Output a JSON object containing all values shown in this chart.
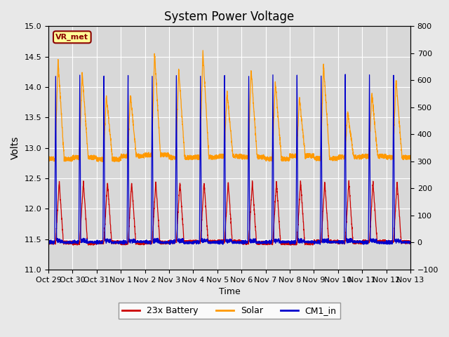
{
  "title": "System Power Voltage",
  "xlabel": "Time",
  "ylabel_left": "Volts",
  "ylabel_right": "",
  "ylim_left": [
    11.0,
    15.0
  ],
  "ylim_right": [
    -100,
    800
  ],
  "yticks_left": [
    11.0,
    11.5,
    12.0,
    12.5,
    13.0,
    13.5,
    14.0,
    14.5,
    15.0
  ],
  "yticks_right": [
    -100,
    0,
    100,
    200,
    300,
    400,
    500,
    600,
    700,
    800
  ],
  "xtick_labels": [
    "Oct 29",
    "Oct 30",
    "Oct 31",
    "Nov 1",
    "Nov 2",
    "Nov 3",
    "Nov 4",
    "Nov 5",
    "Nov 6",
    "Nov 7",
    "Nov 8",
    "Nov 9",
    "Nov 10",
    "Nov 11",
    "Nov 12",
    "Nov 13"
  ],
  "n_days": 15,
  "background_color": "#e8e8e8",
  "axes_bg_color": "#d8d8d8",
  "grid_color": "#ffffff",
  "vr_met_label": "VR_met",
  "vr_met_bg": "#ffff99",
  "vr_met_border": "#8B0000",
  "battery_color": "#cc0000",
  "solar_color": "#ff9900",
  "cm1_color": "#0000cc",
  "legend_labels": [
    "23x Battery",
    "Solar",
    "CM1_in"
  ],
  "battery_base": 11.45,
  "battery_peak": 12.45,
  "battery_charge_peak": 14.25,
  "solar_base": 12.85,
  "solar_peak": 14.6,
  "cm1_base": 11.45,
  "cm1_peak": 14.3
}
